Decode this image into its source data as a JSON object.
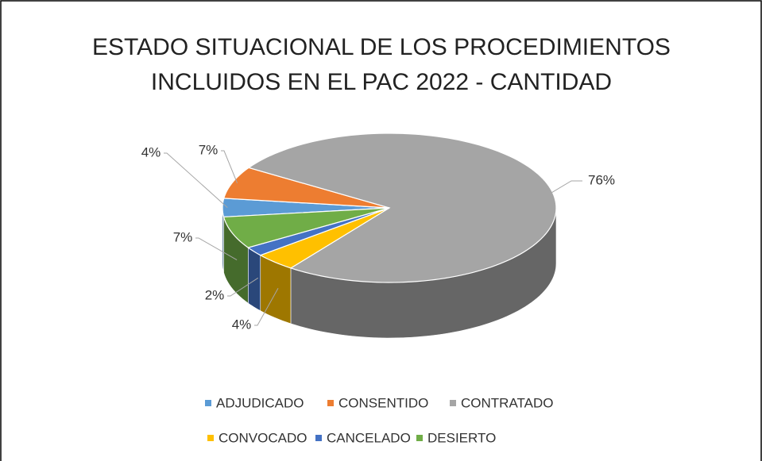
{
  "chart_data": {
    "type": "pie",
    "title": "ESTADO SITUACIONAL DE LOS PROCEDIMIENTOS INCLUIDOS EN EL PAC 2022 - CANTIDAD",
    "categories": [
      "ADJUDICADO",
      "CONSENTIDO",
      "CONTRATADO",
      "CONVOCADO",
      "CANCELADO",
      "DESIERTO"
    ],
    "values": [
      4,
      7,
      76,
      4,
      2,
      7
    ],
    "value_labels": [
      "4%",
      "7%",
      "76%",
      "4%",
      "2%",
      "7%"
    ],
    "colors": [
      "#5b9bd5",
      "#ed7d31",
      "#a5a5a5",
      "#ffc000",
      "#4472c4",
      "#70ad47"
    ],
    "legend": "bottom"
  }
}
